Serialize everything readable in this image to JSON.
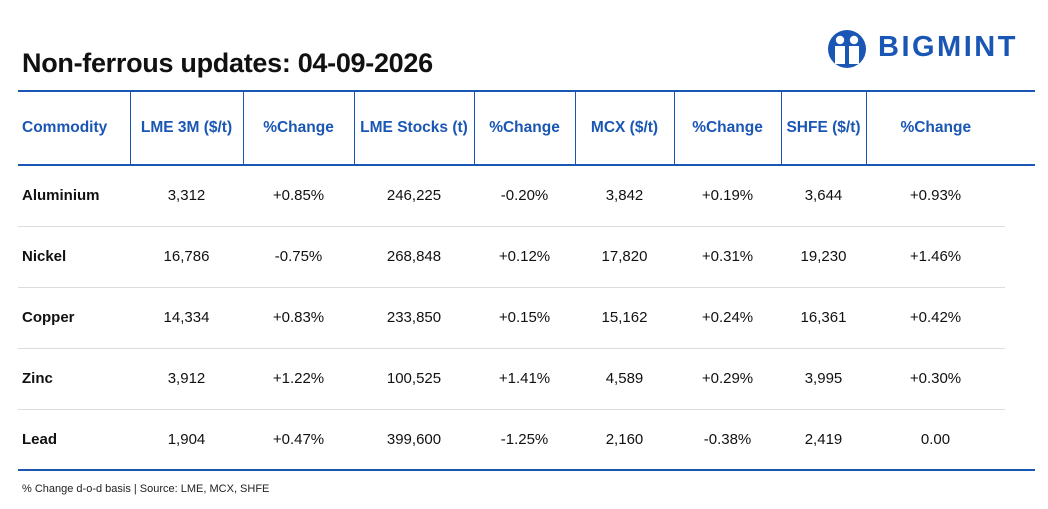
{
  "title": "Non-ferrous updates: 04-09-2026",
  "logo": {
    "text": "BIGMINT",
    "icon": "bigmint-people-logo-icon",
    "color": "#1a56b4"
  },
  "colors": {
    "accent": "#1a56b4",
    "positive": "#1ca44a",
    "negative": "#e02424"
  },
  "table": {
    "headers": [
      "Commodity",
      "LME 3M ($/t)",
      "%Change",
      "LME Stocks (t)",
      "%Change",
      "MCX ($/t)",
      "%Change",
      "SHFE ($/t)",
      "%Change"
    ],
    "rows": [
      [
        "Aluminium",
        "3,312",
        "+0.85%",
        "246,225",
        "-0.20%",
        "3,842",
        "+0.19%",
        "3,644",
        "+0.93%"
      ],
      [
        "Nickel",
        "16,786",
        "-0.75%",
        "268,848",
        "+0.12%",
        "17,820",
        "+0.31%",
        "19,230",
        "+1.46%"
      ],
      [
        "Copper",
        "14,334",
        "+0.83%",
        "233,850",
        "+0.15%",
        "15,162",
        "+0.24%",
        "16,361",
        "+0.42%"
      ],
      [
        "Zinc",
        "3,912",
        "+1.22%",
        "100,525",
        "+1.41%",
        "4,589",
        "+0.29%",
        "3,995",
        "+0.30%"
      ],
      [
        "Lead",
        "1,904",
        "+0.47%",
        "399,600",
        "-1.25%",
        "2,160",
        "-0.38%",
        "2,419",
        "0.00"
      ]
    ]
  },
  "footnote": "% Change d-o-d basis | Source: LME, MCX, SHFE"
}
